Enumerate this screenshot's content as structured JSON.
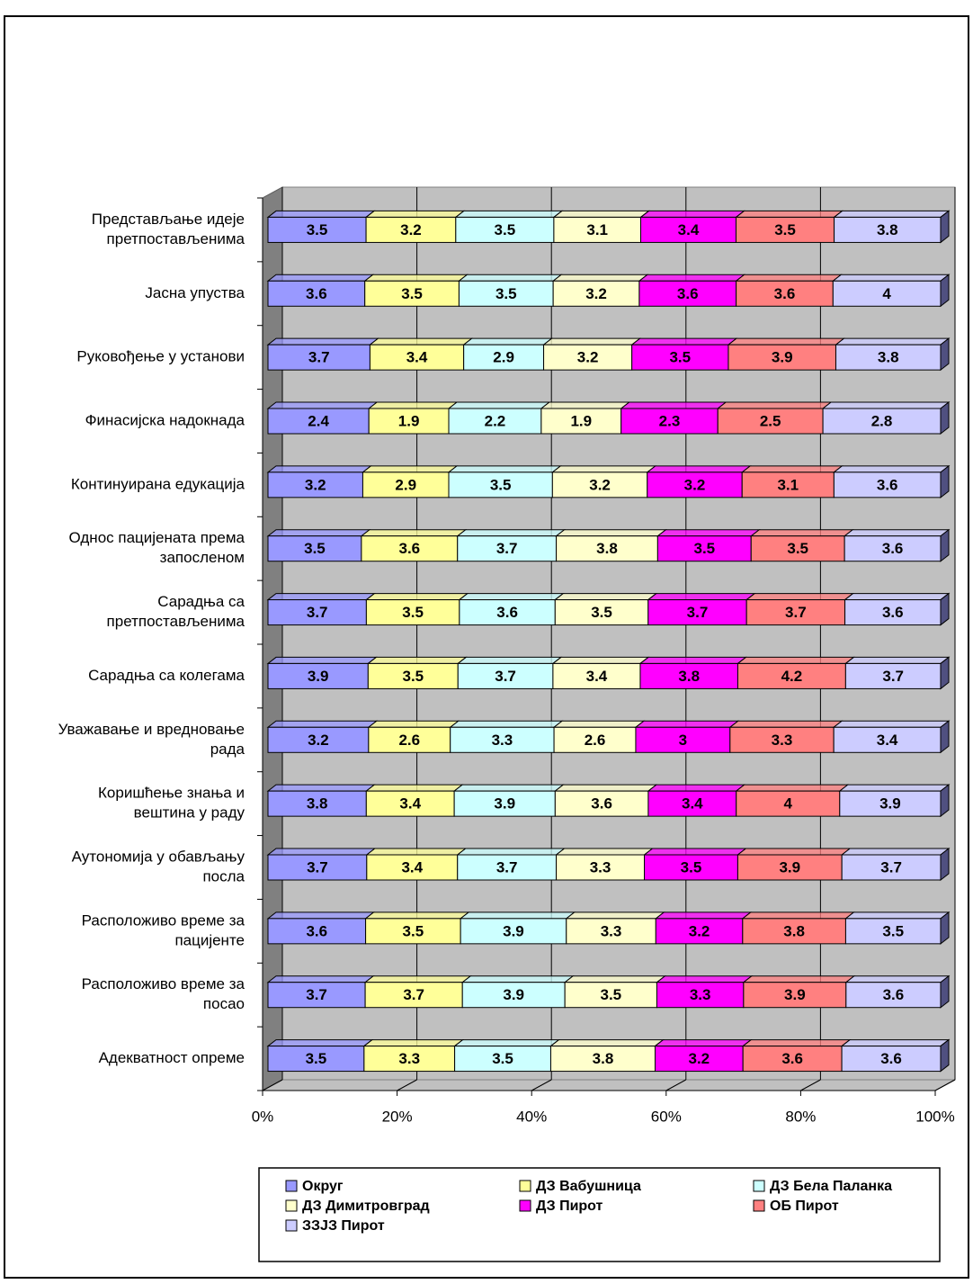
{
  "chart_data": {
    "type": "stacked_bar_100",
    "categories": [
      [
        "Представљање идеје",
        "претпостављенима"
      ],
      [
        "Јасна упуства"
      ],
      [
        "Руковођење у установи"
      ],
      [
        "Финасијска надокнада"
      ],
      [
        "Континуирана едукација"
      ],
      [
        "Однос пацијената према",
        "запосленом"
      ],
      [
        "Сарадња са",
        "претпостављенима"
      ],
      [
        "Сарадња са колегама"
      ],
      [
        "Уважавање и вредновање",
        "рада"
      ],
      [
        "Коришћење знања и",
        "вештина у раду"
      ],
      [
        "Аутономија у обављању",
        "посла"
      ],
      [
        "Расположиво време за",
        "пацијенте"
      ],
      [
        "Расположиво време за",
        "посао"
      ],
      [
        "Адекватност опреме"
      ]
    ],
    "series": [
      {
        "name": "Округ",
        "color": "#9999ff",
        "values": [
          3.5,
          3.6,
          3.7,
          2.4,
          3.2,
          3.5,
          3.7,
          3.9,
          3.2,
          3.8,
          3.7,
          3.6,
          3.7,
          3.5
        ]
      },
      {
        "name": "ДЗ Вабушница",
        "color": "#ffff99",
        "values": [
          3.2,
          3.5,
          3.4,
          1.9,
          2.9,
          3.6,
          3.5,
          3.5,
          2.6,
          3.4,
          3.4,
          3.5,
          3.7,
          3.3
        ]
      },
      {
        "name": "ДЗ Бела Паланка",
        "color": "#ccffff",
        "values": [
          3.5,
          3.5,
          2.9,
          2.2,
          3.5,
          3.7,
          3.6,
          3.7,
          3.3,
          3.9,
          3.7,
          3.9,
          3.9,
          3.5
        ]
      },
      {
        "name": "ДЗ Димитровград",
        "color": "#ffffcc",
        "values": [
          3.1,
          3.2,
          3.2,
          1.9,
          3.2,
          3.8,
          3.5,
          3.4,
          2.6,
          3.6,
          3.3,
          3.3,
          3.5,
          3.8
        ]
      },
      {
        "name": "ДЗ Пирот",
        "color": "#ff00ff",
        "values": [
          3.4,
          3.6,
          3.5,
          2.3,
          3.2,
          3.5,
          3.7,
          3.8,
          3,
          3.4,
          3.5,
          3.2,
          3.3,
          3.2
        ]
      },
      {
        "name": "ОБ Пирот",
        "color": "#ff8080",
        "values": [
          3.5,
          3.6,
          3.9,
          2.5,
          3.1,
          3.5,
          3.7,
          4.2,
          3.3,
          4,
          3.9,
          3.8,
          3.9,
          3.6
        ]
      },
      {
        "name": "ЗЗЈЗ Пирот",
        "color": "#ccccff",
        "values": [
          3.8,
          4,
          3.8,
          2.8,
          3.6,
          3.6,
          3.6,
          3.7,
          3.4,
          3.9,
          3.7,
          3.5,
          3.6,
          3.6
        ]
      }
    ],
    "xlim": [
      0,
      100
    ],
    "xticks": [
      {
        "value": 0,
        "label": "0%"
      },
      {
        "value": 20,
        "label": "20%"
      },
      {
        "value": 40,
        "label": "40%"
      },
      {
        "value": 60,
        "label": "60%"
      },
      {
        "value": 80,
        "label": "80%"
      },
      {
        "value": 100,
        "label": "100%"
      }
    ],
    "grid": true
  }
}
